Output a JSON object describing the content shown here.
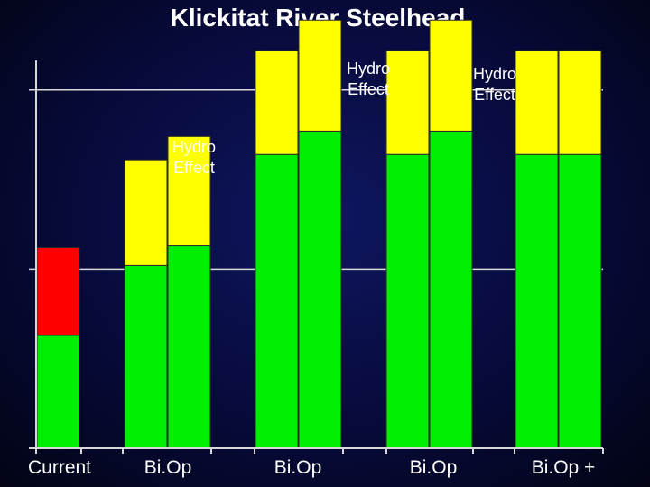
{
  "chart_data": {
    "type": "bar",
    "title": "Klickitat River Steelhead",
    "xlabel": "",
    "ylabel": "",
    "ylim": [
      0,
      2.2
    ],
    "gridlines": [
      1,
      2
    ],
    "categories": [
      "Current",
      "Bi.Op",
      "Bi.Op",
      "Bi.Op",
      "Bi.Op +"
    ],
    "series": [
      {
        "name": "green",
        "color": "#00ee00"
      },
      {
        "name": "yellow",
        "color": "#ffff00"
      },
      {
        "name": "red",
        "color": "#ff0000"
      }
    ],
    "bars": [
      {
        "category": 0,
        "slot": 0,
        "segments": [
          {
            "series": "green",
            "value": 0.63
          },
          {
            "series": "red",
            "value": 0.49
          }
        ]
      },
      {
        "category": 1,
        "slot": 0,
        "segments": [
          {
            "series": "green",
            "value": 1.02
          },
          {
            "series": "yellow",
            "value": 0.59
          }
        ]
      },
      {
        "category": 1,
        "slot": 1,
        "segments": [
          {
            "series": "green",
            "value": 1.13
          },
          {
            "series": "yellow",
            "value": 0.61
          }
        ]
      },
      {
        "category": 2,
        "slot": 0,
        "segments": [
          {
            "series": "green",
            "value": 1.64
          },
          {
            "series": "yellow",
            "value": 0.58
          }
        ]
      },
      {
        "category": 2,
        "slot": 1,
        "segments": [
          {
            "series": "green",
            "value": 1.77
          },
          {
            "series": "yellow",
            "value": 0.62
          }
        ]
      },
      {
        "category": 3,
        "slot": 0,
        "segments": [
          {
            "series": "green",
            "value": 1.64
          },
          {
            "series": "yellow",
            "value": 0.58
          }
        ]
      },
      {
        "category": 3,
        "slot": 1,
        "segments": [
          {
            "series": "green",
            "value": 1.77
          },
          {
            "series": "yellow",
            "value": 0.62
          }
        ]
      },
      {
        "category": 4,
        "slot": 0,
        "segments": [
          {
            "series": "green",
            "value": 1.64
          },
          {
            "series": "yellow",
            "value": 0.58
          }
        ]
      },
      {
        "category": 4,
        "slot": 1,
        "segments": [
          {
            "series": "green",
            "value": 1.64
          },
          {
            "series": "yellow",
            "value": 0.58
          }
        ]
      }
    ],
    "annotations": [
      {
        "text": "Hydro Effect",
        "category": 1,
        "lines": [
          "Hydro",
          "Effect"
        ]
      },
      {
        "text": "Hydro Effect",
        "category": 2,
        "lines": [
          "Hydro",
          "Effect"
        ]
      },
      {
        "text": "Hydro Effect",
        "category": 3,
        "lines": [
          "Hydro",
          "Effect"
        ]
      }
    ]
  }
}
